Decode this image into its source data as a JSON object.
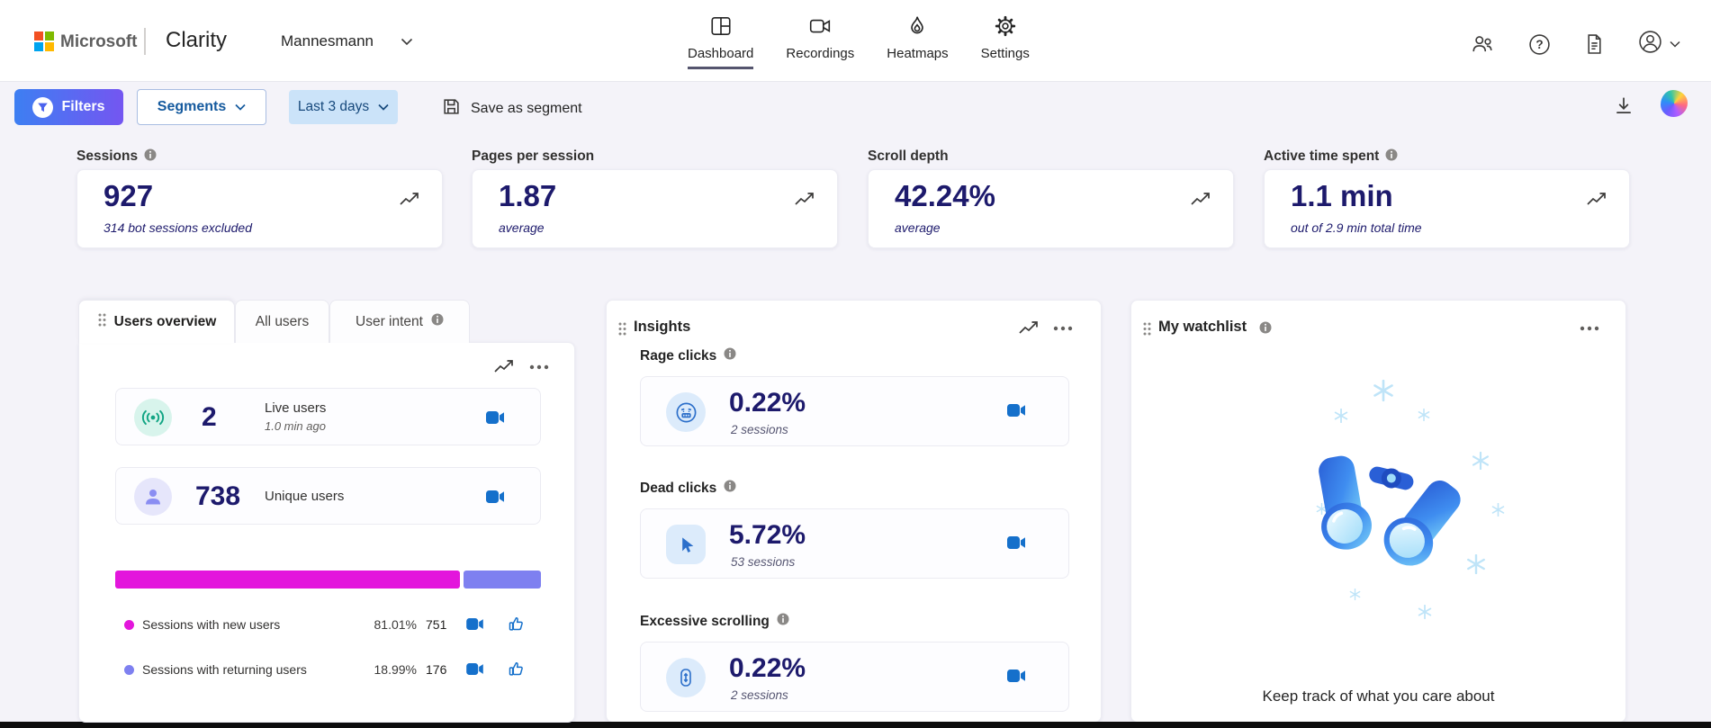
{
  "nav": {
    "microsoft": "Microsoft",
    "product": "Clarity",
    "project": "Mannesmann",
    "items": [
      {
        "label": "Dashboard"
      },
      {
        "label": "Recordings"
      },
      {
        "label": "Heatmaps"
      },
      {
        "label": "Settings"
      }
    ]
  },
  "toolbar": {
    "filters_label": "Filters",
    "segments_label": "Segments",
    "date_range_label": "Last 3 days",
    "save_segment_label": "Save as segment"
  },
  "metrics": [
    {
      "label": "Sessions",
      "value": "927",
      "subtitle": "314 bot sessions excluded"
    },
    {
      "label": "Pages per session",
      "value": "1.87",
      "subtitle": "average"
    },
    {
      "label": "Scroll depth",
      "value": "42.24%",
      "subtitle": "average"
    },
    {
      "label": "Active time spent",
      "value": "1.1 min",
      "subtitle": "out of 2.9 min total time"
    }
  ],
  "users_panel": {
    "tabs": [
      {
        "label": "Users overview"
      },
      {
        "label": "All users"
      },
      {
        "label": "User intent"
      }
    ],
    "live_users": {
      "value": "2",
      "label": "Live users",
      "ago": "1.0 min ago"
    },
    "unique_users": {
      "value": "738",
      "label": "Unique users"
    },
    "split": {
      "new_pct": 81.01,
      "returning_pct": 18.99
    },
    "legend": [
      {
        "label": "Sessions with new users",
        "pct": "81.01%",
        "count": "751",
        "color": "#e316dc"
      },
      {
        "label": "Sessions with returning users",
        "pct": "18.99%",
        "count": "176",
        "color": "#7e80f0"
      }
    ]
  },
  "insights_panel": {
    "title": "Insights",
    "items": [
      {
        "label": "Rage clicks",
        "value": "0.22%",
        "sessions": "2 sessions"
      },
      {
        "label": "Dead clicks",
        "value": "5.72%",
        "sessions": "53 sessions"
      },
      {
        "label": "Excessive scrolling",
        "value": "0.22%",
        "sessions": "2 sessions"
      }
    ]
  },
  "watchlist_panel": {
    "title": "My watchlist",
    "caption": "Keep track of what you care about"
  },
  "colors": {
    "navy": "#1d1a6c",
    "camera_blue": "#1570cb",
    "new_users_magenta": "#e316dc",
    "returning_users_periwinkle": "#7e80f0"
  }
}
